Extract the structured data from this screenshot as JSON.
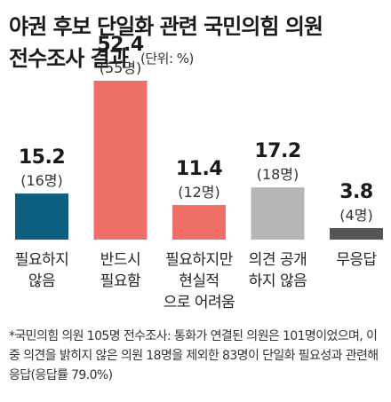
{
  "title_line1": "야권 후보 단일화 관련 국민의힘 의원",
  "title_line2": "전수조사 결과",
  "unit": "(단위: %)",
  "chart_data": {
    "type": "bar",
    "categories": [
      [
        "필요하지",
        "않음"
      ],
      [
        "반드시",
        "필요함"
      ],
      [
        "필요하지만",
        "현실적",
        "으로 어려움"
      ],
      [
        "의견 공개",
        "하지 않음"
      ],
      [
        "무응답"
      ]
    ],
    "values": [
      15.2,
      52.4,
      11.4,
      17.2,
      3.8
    ],
    "value_labels": [
      "15.2",
      "52.4",
      "11.4",
      "17.2",
      "3.8"
    ],
    "count_labels": [
      "(16명)",
      "(55명)",
      "(12명)",
      "(18명)",
      "(4명)"
    ],
    "colors": [
      "#0d5f80",
      "#ef6f68",
      "#ef6f68",
      "#b5b5b5",
      "#555555"
    ],
    "ylim": [
      0,
      52.4
    ]
  },
  "footnote": "*국민의힘 의원 105명 전수조사: 통화가 연결된 의원은 101명이었으며, 이 중 의견을 밝히지 않은 의원 18명을 제외한 83명이 단일화 필요성과 관련해 응답(응답률 79.0%)"
}
